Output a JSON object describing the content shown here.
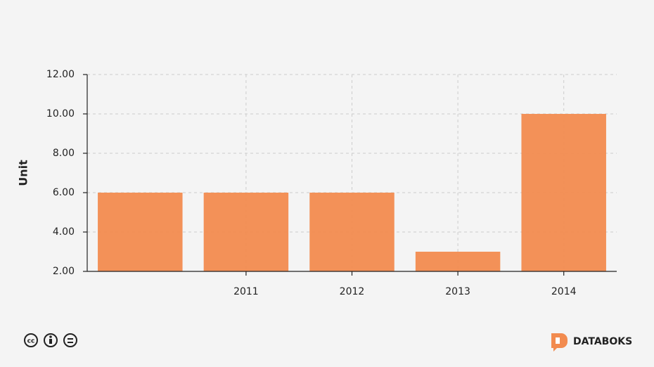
{
  "chart_data": {
    "type": "bar",
    "y_label": "Unit",
    "categories": [
      null,
      "2011",
      "2012",
      "2013",
      "2014"
    ],
    "values": [
      6,
      6,
      6,
      3,
      10
    ],
    "color": "#f28b4f",
    "ylim": [
      2,
      12
    ],
    "yticks": [
      {
        "value": 2,
        "label": "2.00"
      },
      {
        "value": 4,
        "label": "4.00"
      },
      {
        "value": 6,
        "label": "6.00"
      },
      {
        "value": 8,
        "label": "8.00"
      },
      {
        "value": 10,
        "label": "10.00"
      },
      {
        "value": 12,
        "label": "12.00"
      }
    ],
    "grid": true
  },
  "footer": {
    "brand": "DATABOKS"
  }
}
